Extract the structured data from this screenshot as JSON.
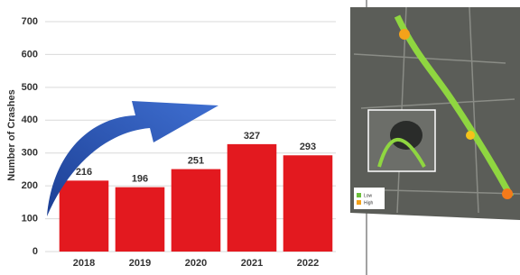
{
  "chart_data": {
    "type": "bar",
    "y_label": "Number of Crashes",
    "categories": [
      "2018",
      "2019",
      "2020",
      "2021",
      "2022"
    ],
    "values": [
      216,
      196,
      251,
      327,
      293
    ],
    "color": "#e3191f",
    "ylim": [
      0,
      700
    ],
    "yticks": [
      0,
      100,
      200,
      300,
      400,
      500,
      600,
      700
    ],
    "grid": true
  },
  "map_legend": {
    "low": "Low",
    "high": "High"
  }
}
